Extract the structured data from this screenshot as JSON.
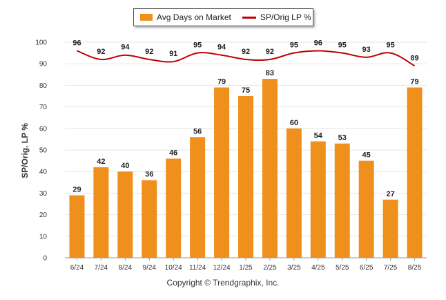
{
  "legend": {
    "bar_label": "Avg Days on Market",
    "line_label": "SP/Orig LP %"
  },
  "copyright": "Copyright © Trendgraphix, Inc.",
  "colors": {
    "bar": "#f0901c",
    "line": "#c00000",
    "grid": "#e6e6e6",
    "axis": "#999999"
  },
  "chart_data": {
    "type": "bar",
    "categories": [
      "6/24",
      "7/24",
      "8/24",
      "9/24",
      "10/24",
      "11/24",
      "12/24",
      "1/25",
      "2/25",
      "3/25",
      "4/25",
      "5/25",
      "6/25",
      "7/25",
      "8/25"
    ],
    "series": [
      {
        "name": "Avg Days on Market",
        "type": "bar",
        "values": [
          29,
          42,
          40,
          36,
          46,
          56,
          79,
          75,
          83,
          60,
          54,
          53,
          45,
          27,
          79
        ]
      },
      {
        "name": "SP/Orig LP %",
        "type": "line",
        "values": [
          96,
          92,
          94,
          92,
          91,
          95,
          94,
          92,
          92,
          95,
          96,
          95,
          93,
          95,
          89
        ]
      }
    ],
    "ylabel": "SP/Orig. LP %",
    "ylim": [
      0,
      100
    ],
    "yticks": [
      0,
      10,
      20,
      30,
      40,
      50,
      60,
      70,
      80,
      90,
      100
    ],
    "grid": true,
    "legend_position": "top-center"
  }
}
